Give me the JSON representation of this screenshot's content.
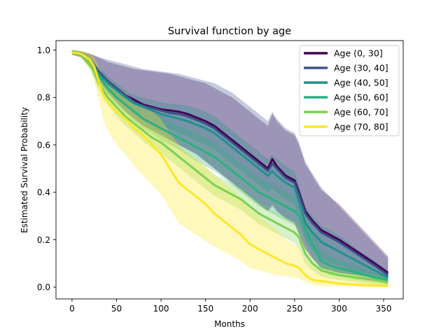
{
  "chart_data": {
    "type": "line",
    "title": "Survival function by age",
    "xlabel": "Months",
    "ylabel": "Estimated Survival Probability",
    "xlim": [
      -18,
      372
    ],
    "ylim": [
      -0.05,
      1.04
    ],
    "xticks": [
      0,
      50,
      100,
      150,
      200,
      250,
      300,
      350
    ],
    "yticks": [
      0.0,
      0.2,
      0.4,
      0.6,
      0.8,
      1.0
    ],
    "xtick_labels": [
      "0",
      "50",
      "100",
      "150",
      "200",
      "250",
      "300",
      "350"
    ],
    "ytick_labels": [
      "0.0",
      "0.2",
      "0.4",
      "0.6",
      "0.8",
      "1.0"
    ],
    "grid": false,
    "legend_position": "top-right",
    "series": [
      {
        "name": "Age (0, 30]",
        "color": "#440154",
        "x": [
          0,
          10,
          20,
          30,
          40,
          50,
          60,
          70,
          80,
          90,
          100,
          110,
          120,
          130,
          140,
          150,
          160,
          170,
          180,
          190,
          200,
          210,
          220,
          225,
          230,
          240,
          250,
          255,
          262,
          270,
          280,
          290,
          300,
          320,
          340,
          355
        ],
        "y": [
          0.99,
          0.985,
          0.96,
          0.91,
          0.87,
          0.84,
          0.81,
          0.79,
          0.77,
          0.76,
          0.75,
          0.745,
          0.74,
          0.73,
          0.715,
          0.7,
          0.68,
          0.65,
          0.62,
          0.59,
          0.56,
          0.53,
          0.5,
          0.54,
          0.51,
          0.47,
          0.45,
          0.4,
          0.32,
          0.28,
          0.24,
          0.22,
          0.2,
          0.15,
          0.1,
          0.06
        ],
        "lower": [
          0.98,
          0.97,
          0.93,
          0.87,
          0.82,
          0.78,
          0.74,
          0.71,
          0.68,
          0.66,
          0.64,
          0.62,
          0.6,
          0.58,
          0.56,
          0.53,
          0.5,
          0.47,
          0.44,
          0.41,
          0.38,
          0.35,
          0.32,
          0.35,
          0.32,
          0.29,
          0.27,
          0.22,
          0.16,
          0.12,
          0.08,
          0.07,
          0.06,
          0.05,
          0.04,
          0.02
        ],
        "upper": [
          1.0,
          0.995,
          0.985,
          0.97,
          0.95,
          0.94,
          0.93,
          0.92,
          0.915,
          0.91,
          0.905,
          0.9,
          0.89,
          0.88,
          0.87,
          0.86,
          0.84,
          0.82,
          0.8,
          0.77,
          0.74,
          0.71,
          0.68,
          0.73,
          0.7,
          0.66,
          0.64,
          0.6,
          0.52,
          0.47,
          0.41,
          0.38,
          0.35,
          0.27,
          0.19,
          0.13
        ]
      },
      {
        "name": "Age (30, 40]",
        "color": "#3b528b",
        "x": [
          0,
          10,
          20,
          30,
          40,
          50,
          60,
          70,
          80,
          90,
          100,
          110,
          120,
          130,
          140,
          150,
          160,
          170,
          180,
          190,
          200,
          210,
          220,
          225,
          230,
          240,
          250,
          255,
          262,
          270,
          280,
          290,
          300,
          320,
          340,
          355
        ],
        "y": [
          0.99,
          0.985,
          0.96,
          0.91,
          0.87,
          0.84,
          0.81,
          0.78,
          0.765,
          0.755,
          0.745,
          0.735,
          0.73,
          0.72,
          0.705,
          0.69,
          0.67,
          0.64,
          0.61,
          0.58,
          0.55,
          0.52,
          0.49,
          0.52,
          0.5,
          0.46,
          0.44,
          0.39,
          0.31,
          0.27,
          0.23,
          0.21,
          0.19,
          0.14,
          0.09,
          0.05
        ],
        "lower": [
          0.98,
          0.97,
          0.93,
          0.87,
          0.82,
          0.78,
          0.74,
          0.71,
          0.68,
          0.66,
          0.64,
          0.62,
          0.6,
          0.58,
          0.56,
          0.53,
          0.5,
          0.47,
          0.44,
          0.41,
          0.38,
          0.35,
          0.32,
          0.34,
          0.32,
          0.29,
          0.27,
          0.22,
          0.16,
          0.12,
          0.08,
          0.07,
          0.06,
          0.05,
          0.03,
          0.02
        ],
        "upper": [
          1.0,
          0.995,
          0.985,
          0.97,
          0.96,
          0.95,
          0.94,
          0.93,
          0.92,
          0.915,
          0.91,
          0.905,
          0.9,
          0.89,
          0.88,
          0.87,
          0.86,
          0.84,
          0.82,
          0.79,
          0.76,
          0.73,
          0.7,
          0.74,
          0.71,
          0.67,
          0.65,
          0.61,
          0.53,
          0.48,
          0.42,
          0.38,
          0.34,
          0.26,
          0.18,
          0.12
        ]
      },
      {
        "name": "Age (40, 50]",
        "color": "#21918c",
        "x": [
          0,
          10,
          20,
          30,
          40,
          50,
          60,
          70,
          80,
          90,
          100,
          110,
          120,
          130,
          140,
          150,
          160,
          170,
          180,
          190,
          200,
          210,
          220,
          225,
          230,
          240,
          250,
          255,
          262,
          270,
          280,
          290,
          300,
          320,
          340,
          355
        ],
        "y": [
          0.99,
          0.985,
          0.955,
          0.9,
          0.86,
          0.83,
          0.8,
          0.775,
          0.76,
          0.745,
          0.73,
          0.72,
          0.71,
          0.7,
          0.685,
          0.67,
          0.65,
          0.62,
          0.59,
          0.56,
          0.53,
          0.5,
          0.47,
          0.49,
          0.47,
          0.44,
          0.42,
          0.36,
          0.27,
          0.23,
          0.19,
          0.17,
          0.15,
          0.11,
          0.07,
          0.04
        ],
        "lower": [
          0.98,
          0.97,
          0.93,
          0.87,
          0.83,
          0.8,
          0.77,
          0.74,
          0.72,
          0.7,
          0.68,
          0.665,
          0.65,
          0.635,
          0.615,
          0.6,
          0.58,
          0.55,
          0.52,
          0.49,
          0.46,
          0.43,
          0.4,
          0.42,
          0.4,
          0.37,
          0.35,
          0.29,
          0.2,
          0.16,
          0.12,
          0.1,
          0.09,
          0.06,
          0.04,
          0.02
        ],
        "upper": [
          1.0,
          0.995,
          0.98,
          0.93,
          0.89,
          0.86,
          0.83,
          0.81,
          0.8,
          0.79,
          0.78,
          0.775,
          0.77,
          0.765,
          0.755,
          0.74,
          0.72,
          0.69,
          0.66,
          0.63,
          0.6,
          0.57,
          0.54,
          0.56,
          0.54,
          0.51,
          0.49,
          0.43,
          0.34,
          0.3,
          0.26,
          0.24,
          0.22,
          0.16,
          0.11,
          0.07
        ]
      },
      {
        "name": "Age (50, 60]",
        "color": "#2ab07f",
        "x": [
          0,
          10,
          20,
          30,
          40,
          50,
          60,
          70,
          80,
          90,
          100,
          110,
          120,
          130,
          140,
          150,
          160,
          170,
          180,
          190,
          200,
          210,
          220,
          230,
          240,
          250,
          255,
          260,
          270,
          280,
          290,
          300,
          320,
          340,
          355
        ],
        "y": [
          0.99,
          0.985,
          0.955,
          0.89,
          0.84,
          0.8,
          0.77,
          0.74,
          0.71,
          0.69,
          0.67,
          0.65,
          0.63,
          0.61,
          0.59,
          0.57,
          0.55,
          0.52,
          0.49,
          0.46,
          0.43,
          0.4,
          0.38,
          0.36,
          0.34,
          0.32,
          0.3,
          0.26,
          0.18,
          0.11,
          0.09,
          0.08,
          0.06,
          0.04,
          0.03
        ],
        "lower": [
          0.98,
          0.97,
          0.93,
          0.86,
          0.81,
          0.77,
          0.735,
          0.7,
          0.67,
          0.645,
          0.62,
          0.6,
          0.58,
          0.555,
          0.53,
          0.51,
          0.49,
          0.46,
          0.43,
          0.4,
          0.37,
          0.34,
          0.32,
          0.3,
          0.28,
          0.26,
          0.24,
          0.2,
          0.13,
          0.07,
          0.05,
          0.045,
          0.03,
          0.02,
          0.01
        ],
        "upper": [
          1.0,
          0.995,
          0.975,
          0.92,
          0.87,
          0.83,
          0.805,
          0.78,
          0.75,
          0.735,
          0.72,
          0.7,
          0.68,
          0.665,
          0.65,
          0.63,
          0.61,
          0.58,
          0.55,
          0.52,
          0.49,
          0.46,
          0.44,
          0.42,
          0.4,
          0.38,
          0.36,
          0.32,
          0.23,
          0.15,
          0.13,
          0.115,
          0.09,
          0.06,
          0.05
        ]
      },
      {
        "name": "Age (60, 70]",
        "color": "#7ad151",
        "x": [
          0,
          10,
          20,
          30,
          40,
          50,
          60,
          70,
          80,
          90,
          100,
          110,
          120,
          130,
          140,
          150,
          160,
          170,
          180,
          190,
          200,
          210,
          220,
          230,
          240,
          250,
          255,
          262,
          270,
          280,
          290,
          300,
          320,
          340,
          355
        ],
        "y": [
          0.99,
          0.985,
          0.95,
          0.86,
          0.8,
          0.76,
          0.72,
          0.69,
          0.66,
          0.63,
          0.61,
          0.58,
          0.55,
          0.52,
          0.49,
          0.46,
          0.43,
          0.41,
          0.39,
          0.37,
          0.34,
          0.31,
          0.29,
          0.27,
          0.25,
          0.23,
          0.21,
          0.14,
          0.1,
          0.07,
          0.06,
          0.05,
          0.04,
          0.03,
          0.02
        ],
        "lower": [
          0.98,
          0.97,
          0.92,
          0.83,
          0.77,
          0.72,
          0.68,
          0.65,
          0.615,
          0.585,
          0.565,
          0.535,
          0.505,
          0.475,
          0.445,
          0.415,
          0.385,
          0.365,
          0.345,
          0.325,
          0.295,
          0.265,
          0.245,
          0.225,
          0.205,
          0.185,
          0.165,
          0.1,
          0.07,
          0.045,
          0.035,
          0.03,
          0.02,
          0.01,
          0.005
        ],
        "upper": [
          1.0,
          0.995,
          0.97,
          0.89,
          0.83,
          0.79,
          0.755,
          0.725,
          0.7,
          0.675,
          0.655,
          0.625,
          0.595,
          0.565,
          0.535,
          0.505,
          0.475,
          0.455,
          0.435,
          0.415,
          0.385,
          0.355,
          0.335,
          0.315,
          0.295,
          0.275,
          0.255,
          0.18,
          0.13,
          0.095,
          0.085,
          0.07,
          0.06,
          0.05,
          0.035
        ]
      },
      {
        "name": "Age (70, 80]",
        "color": "#fde725",
        "x": [
          0,
          10,
          20,
          25,
          30,
          35,
          40,
          50,
          60,
          70,
          80,
          90,
          100,
          110,
          120,
          130,
          140,
          150,
          160,
          170,
          180,
          190,
          200,
          210,
          220,
          230,
          240,
          250,
          255,
          262,
          270,
          280,
          290,
          300,
          320,
          340,
          355
        ],
        "y": [
          0.99,
          0.985,
          0.96,
          0.93,
          0.87,
          0.81,
          0.78,
          0.74,
          0.71,
          0.67,
          0.64,
          0.6,
          0.56,
          0.5,
          0.44,
          0.41,
          0.38,
          0.35,
          0.31,
          0.28,
          0.25,
          0.22,
          0.18,
          0.16,
          0.14,
          0.12,
          0.1,
          0.09,
          0.08,
          0.05,
          0.03,
          0.025,
          0.02,
          0.015,
          0.01,
          0.006,
          0.005
        ],
        "lower": [
          0.98,
          0.97,
          0.92,
          0.87,
          0.79,
          0.71,
          0.66,
          0.6,
          0.56,
          0.51,
          0.47,
          0.43,
          0.39,
          0.33,
          0.27,
          0.245,
          0.22,
          0.195,
          0.17,
          0.15,
          0.13,
          0.11,
          0.08,
          0.07,
          0.06,
          0.05,
          0.045,
          0.04,
          0.035,
          0.02,
          0.01,
          0.005,
          0.003,
          0.002,
          0.001,
          0.0,
          0.0
        ],
        "upper": [
          1.0,
          0.995,
          0.985,
          0.97,
          0.93,
          0.89,
          0.87,
          0.84,
          0.82,
          0.79,
          0.77,
          0.74,
          0.71,
          0.65,
          0.6,
          0.57,
          0.54,
          0.51,
          0.47,
          0.44,
          0.41,
          0.38,
          0.33,
          0.3,
          0.27,
          0.24,
          0.2,
          0.18,
          0.17,
          0.12,
          0.09,
          0.08,
          0.07,
          0.06,
          0.05,
          0.04,
          0.03
        ]
      }
    ]
  }
}
